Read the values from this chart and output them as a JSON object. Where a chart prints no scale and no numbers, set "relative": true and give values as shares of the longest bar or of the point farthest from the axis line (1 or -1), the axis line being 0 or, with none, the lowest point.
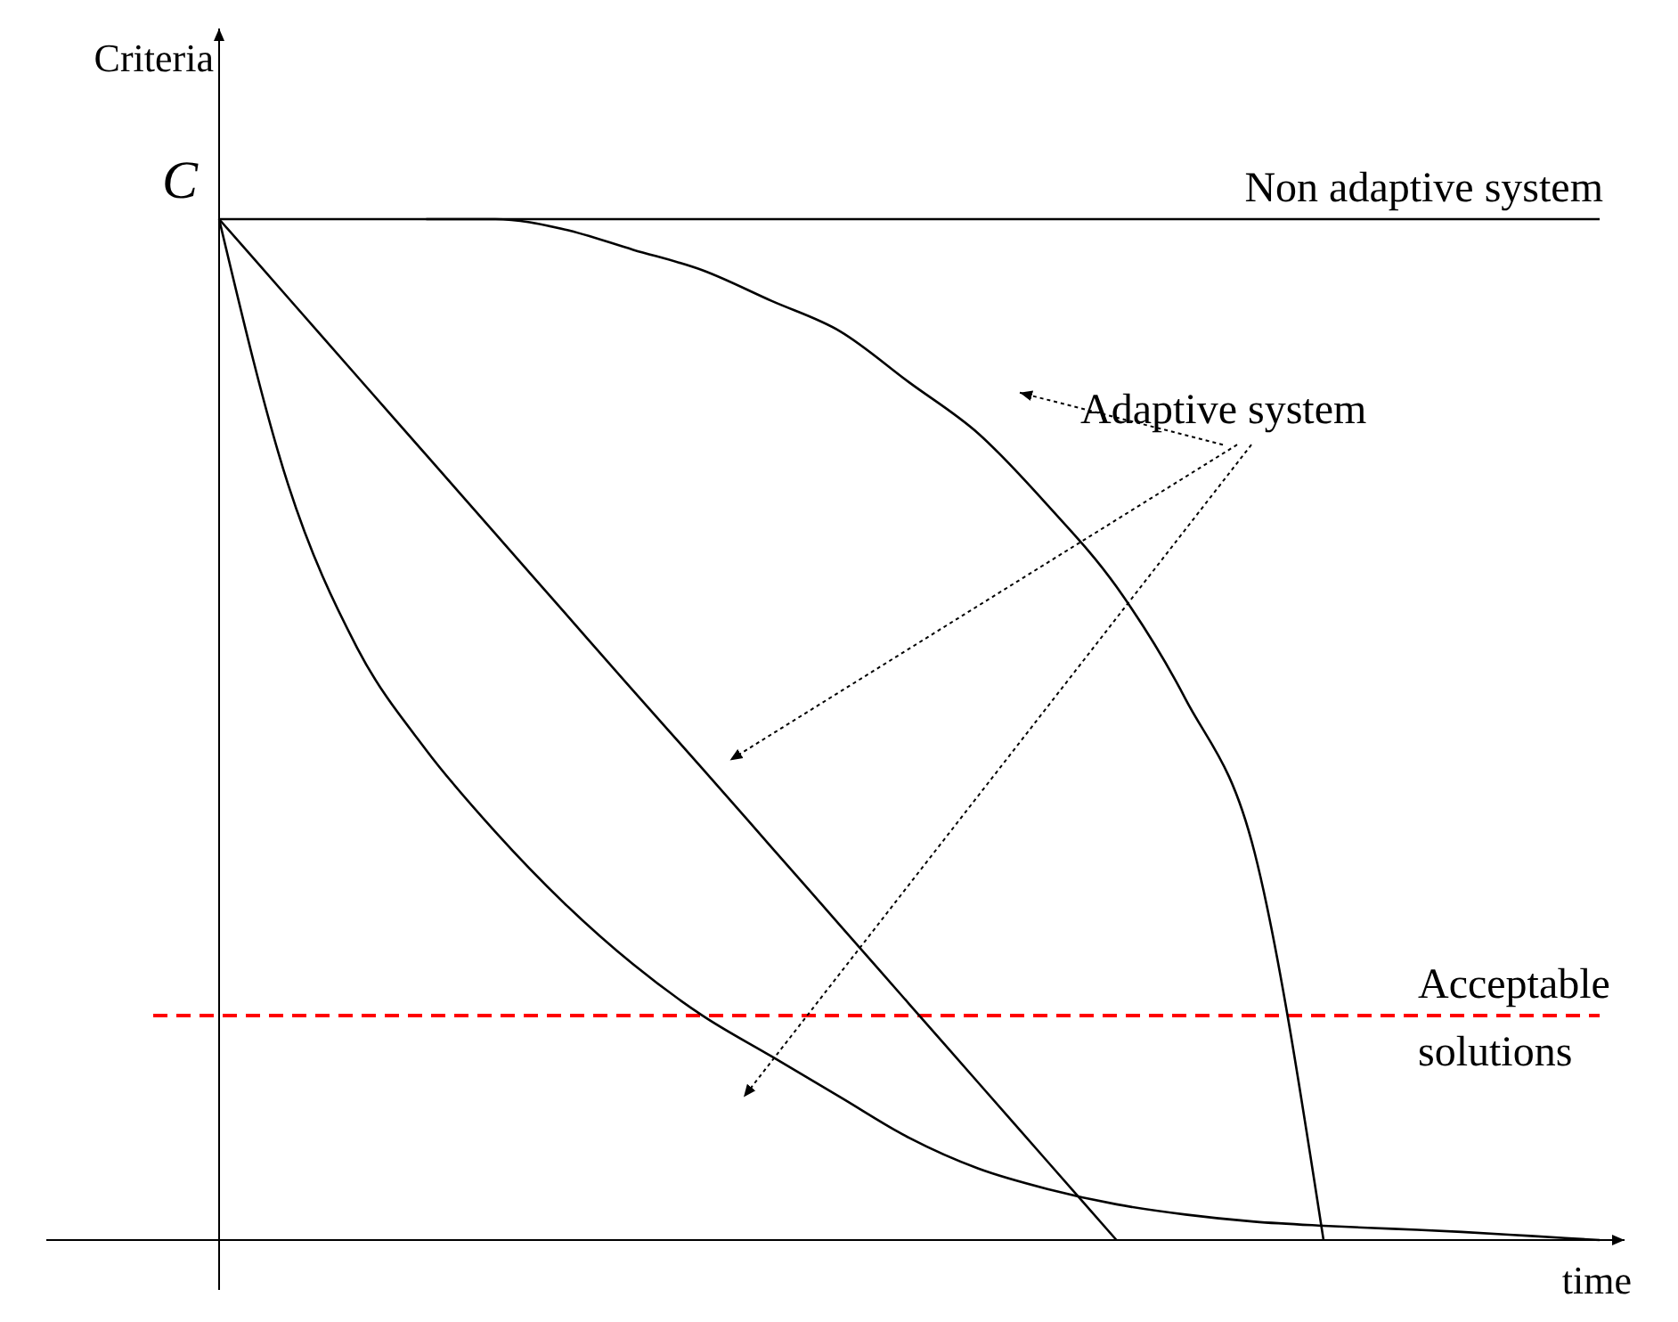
{
  "chart_data": {
    "type": "line",
    "relative": true,
    "ylabel": "Criteria",
    "xlabel": "time",
    "annotations": [
      "C",
      "Adaptive system"
    ],
    "categories": [
      null,
      null,
      null,
      null,
      null,
      null,
      null,
      null,
      null,
      null,
      null,
      null,
      null,
      null,
      null,
      null,
      null,
      null,
      null,
      null,
      null
    ],
    "series": [
      {
        "name": "Non adaptive system",
        "color": "#000000",
        "values": [
          1,
          1,
          1,
          1,
          1,
          1,
          1,
          1,
          1,
          1,
          1,
          1,
          1,
          1,
          1,
          1,
          1,
          1,
          1,
          1,
          1
        ]
      },
      {
        "color": "#000000",
        "values": [
          1,
          0.923,
          0.846,
          0.769,
          0.692,
          0.615,
          0.538,
          0.462,
          0.385,
          0.308,
          0.231,
          0.154,
          0.077,
          0,
          null,
          null,
          null,
          null,
          null,
          null,
          null
        ]
      },
      {
        "color": "#000000",
        "values": [
          null,
          null,
          null,
          1,
          1,
          0.99,
          0.97,
          0.95,
          0.92,
          0.89,
          0.84,
          0.79,
          0.72,
          0.64,
          0.53,
          0.38,
          0,
          null,
          null,
          null,
          null
        ]
      },
      {
        "color": "#000000",
        "values": [
          1,
          0.74,
          0.58,
          0.48,
          0.4,
          0.33,
          0.27,
          0.22,
          0.18,
          0.14,
          0.1,
          0.07,
          0.05,
          0.035,
          0.025,
          0.018,
          0.014,
          0.011,
          0.008,
          0.004,
          0
        ]
      }
    ],
    "ref_lines": [
      {
        "axis": "y",
        "value": 0.22,
        "label": "Acceptable solutions",
        "color": "#ff0000",
        "line_style": "dashed"
      }
    ],
    "line_style": "solid",
    "marker": "none",
    "legend": false
  }
}
